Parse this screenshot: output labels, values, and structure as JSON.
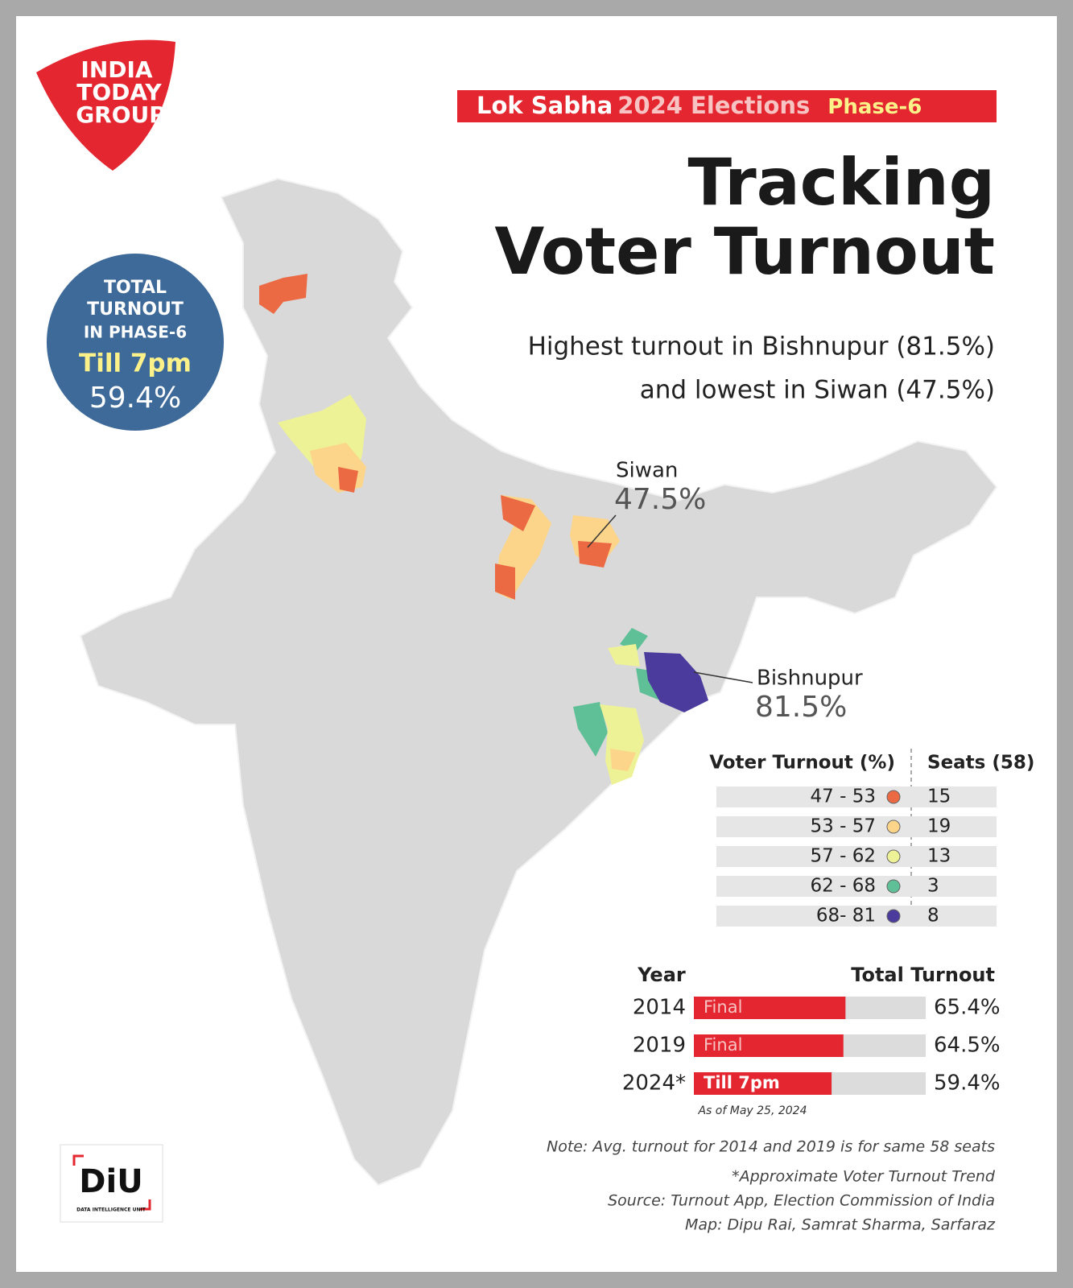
{
  "logo": {
    "lines": [
      "INDIA",
      "TODAY",
      "GROUP"
    ]
  },
  "banner": {
    "part1": "Lok Sabha",
    "part2": "2024 Elections",
    "part3": "Phase-6"
  },
  "title": {
    "line1": "Tracking",
    "line2": "Voter Turnout"
  },
  "subtitle": {
    "line1": "Highest turnout in Bishnupur (81.5%)",
    "line2": "and lowest in Siwan (47.5%)"
  },
  "badge": {
    "lines": [
      "TOTAL",
      "TURNOUT",
      "IN PHASE-6"
    ],
    "time": "Till 7pm",
    "value": "59.4%"
  },
  "callouts": [
    {
      "name": "Siwan",
      "value": "47.5%"
    },
    {
      "name": "Bishnupur",
      "value": "81.5%"
    }
  ],
  "legend": {
    "headers": [
      "Voter Turnout (%)",
      "Seats (58)"
    ],
    "rows": [
      {
        "range": "47 - 53",
        "color": "#ec6a43",
        "seats": 15
      },
      {
        "range": "53 - 57",
        "color": "#fcd58a",
        "seats": 19
      },
      {
        "range": "57 - 62",
        "color": "#eef296",
        "seats": 13
      },
      {
        "range": "62 - 68",
        "color": "#5fc097",
        "seats": 3
      },
      {
        "range": "68- 81",
        "color": "#4b3b9c",
        "seats": 8
      }
    ]
  },
  "turnout_chart": {
    "headers": [
      "Year",
      "Total Turnout"
    ],
    "xlim": [
      0,
      100
    ],
    "rows": [
      {
        "year": "2014",
        "label": "Final",
        "value": 65.4,
        "value_label": "65.4%"
      },
      {
        "year": "2019",
        "label": "Final",
        "value": 64.5,
        "value_label": "64.5%"
      },
      {
        "year": "2024*",
        "label": "Till 7pm",
        "value": 59.4,
        "value_label": "59.4%"
      }
    ],
    "footnote": "As of May 25, 2024"
  },
  "notes": [
    "Note: Avg. turnout for 2014 and 2019 is for same 58 seats",
    "*Approximate Voter Turnout Trend",
    "Source: Turnout App, Election Commission of India",
    "Map: Dipu Rai, Samrat Sharma, Sarfaraz"
  ],
  "diu": {
    "mark": "DiU",
    "caption": "DATA INTELLIGENCE UNIT"
  }
}
